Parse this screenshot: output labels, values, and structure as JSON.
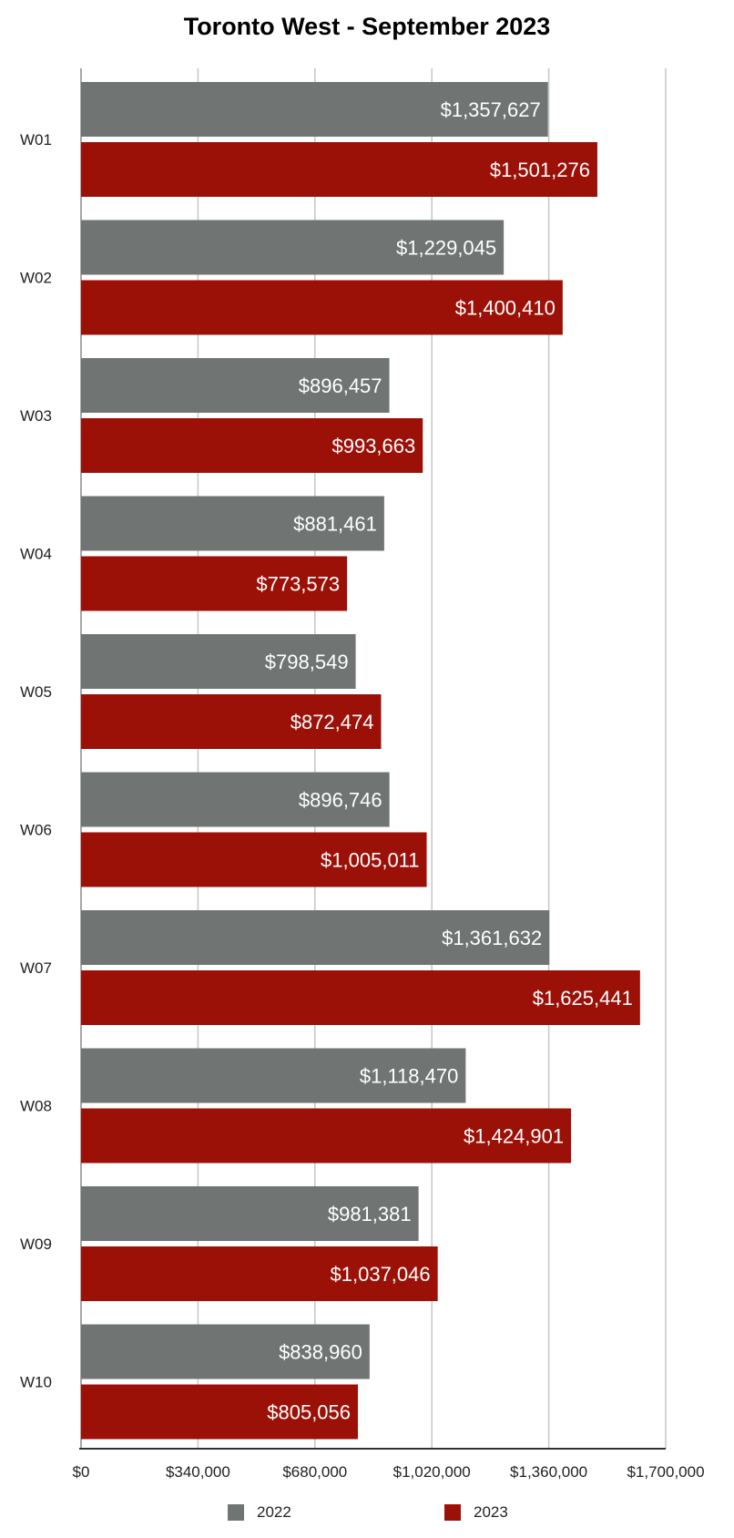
{
  "chart_data": {
    "type": "bar",
    "orientation": "horizontal",
    "title": "Toronto West - September 2023",
    "categories": [
      "W01",
      "W02",
      "W03",
      "W04",
      "W05",
      "W06",
      "W07",
      "W08",
      "W09",
      "W10"
    ],
    "series": [
      {
        "name": "2022",
        "color": "#707573",
        "values": [
          1357627,
          1229045,
          896457,
          881461,
          798549,
          896746,
          1361632,
          1118470,
          981381,
          838960
        ],
        "labels": [
          "$1,357,627",
          "$1,229,045",
          "$896,457",
          "$881,461",
          "$798,549",
          "$896,746",
          "$1,361,632",
          "$1,118,470",
          "$981,381",
          "$838,960"
        ]
      },
      {
        "name": "2023",
        "color": "#9b1108",
        "values": [
          1501276,
          1400410,
          993663,
          773573,
          872474,
          1005011,
          1625441,
          1424901,
          1037046,
          805056
        ],
        "labels": [
          "$1,501,276",
          "$1,400,410",
          "$993,663",
          "$773,573",
          "$872,474",
          "$1,005,011",
          "$1,625,441",
          "$1,424,901",
          "$1,037,046",
          "$805,056"
        ]
      }
    ],
    "xlim": [
      0,
      1700000
    ],
    "xticks": [
      0,
      340000,
      680000,
      1020000,
      1360000,
      1700000
    ],
    "xtick_labels": [
      "$0",
      "$340,000",
      "$680,000",
      "$1,020,000",
      "$1,360,000",
      "$1,700,000"
    ],
    "grid": true,
    "legend_position": "bottom"
  }
}
